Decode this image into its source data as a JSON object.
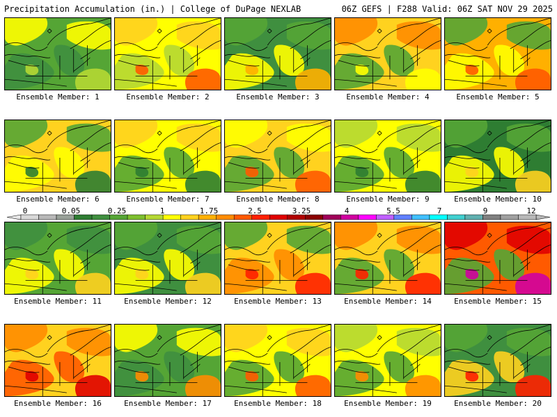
{
  "header": {
    "title": "Precipitation Accumulation (in.) | College of DuPage NEXLAB",
    "run_info": "06Z GEFS | F288 Valid: 06Z SAT NOV 29 2025"
  },
  "legend": {
    "tick_labels": [
      "0",
      "0.05",
      "0.25",
      "1",
      "1.75",
      "2.5",
      "3.25",
      "4",
      "5.5",
      "7",
      "9",
      "12"
    ],
    "colors": [
      "#d8d8d8",
      "#b8b8b8",
      "#98a098",
      "#2e7d32",
      "#3f8f3f",
      "#55a535",
      "#7dbf2e",
      "#b5d833",
      "#ffff00",
      "#ffd21f",
      "#ffb000",
      "#ff8c00",
      "#ff5a00",
      "#ff2000",
      "#e00000",
      "#b00000",
      "#8b0000",
      "#a0005a",
      "#d000a0",
      "#ff00ff",
      "#c060ff",
      "#6080ff",
      "#40c0ff",
      "#00ffff",
      "#40d0d0",
      "#60b0b0",
      "#808080",
      "#a0a0a0",
      "#b8b8b8"
    ]
  },
  "members": [
    {
      "label": "Ensemble Member: 1",
      "colors": [
        "#55a535",
        "#ffff00",
        "#3f8f3f",
        "#b5d833"
      ]
    },
    {
      "label": "Ensemble Member: 2",
      "colors": [
        "#ffff00",
        "#ffd21f",
        "#b5d833",
        "#ff5a00"
      ]
    },
    {
      "label": "Ensemble Member: 3",
      "colors": [
        "#3f8f3f",
        "#55a535",
        "#ffff00",
        "#ffb000"
      ]
    },
    {
      "label": "Ensemble Member: 4",
      "colors": [
        "#ffd21f",
        "#ff8c00",
        "#55a535",
        "#ffff00"
      ]
    },
    {
      "label": "Ensemble Member: 5",
      "colors": [
        "#ffb000",
        "#55a535",
        "#ffff00",
        "#ff5a00"
      ]
    },
    {
      "label": "Ensemble Member: 6",
      "colors": [
        "#ffd21f",
        "#55a535",
        "#ffff00",
        "#2e7d32"
      ]
    },
    {
      "label": "Ensemble Member: 7",
      "colors": [
        "#ffff00",
        "#ffd21f",
        "#55a535",
        "#2e7d32"
      ]
    },
    {
      "label": "Ensemble Member: 8",
      "colors": [
        "#ffd21f",
        "#ffff00",
        "#55a535",
        "#ff5a00"
      ]
    },
    {
      "label": "Ensemble Member: 9",
      "colors": [
        "#ffff00",
        "#b5d833",
        "#55a535",
        "#2e7d32"
      ]
    },
    {
      "label": "Ensemble Member: 10",
      "colors": [
        "#2e7d32",
        "#55a535",
        "#ffff00",
        "#ffd21f"
      ]
    },
    {
      "label": "Ensemble Member: 11",
      "colors": [
        "#55a535",
        "#3f8f3f",
        "#ffff00",
        "#ffd21f"
      ]
    },
    {
      "label": "Ensemble Member: 12",
      "colors": [
        "#3f8f3f",
        "#55a535",
        "#ffff00",
        "#ffd21f"
      ]
    },
    {
      "label": "Ensemble Member: 13",
      "colors": [
        "#ffd21f",
        "#55a535",
        "#ff8c00",
        "#ff2000"
      ]
    },
    {
      "label": "Ensemble Member: 14",
      "colors": [
        "#ffd21f",
        "#ff8c00",
        "#55a535",
        "#ff2000"
      ]
    },
    {
      "label": "Ensemble Member: 15",
      "colors": [
        "#ff5a00",
        "#e00000",
        "#55a535",
        "#d000a0"
      ]
    },
    {
      "label": "Ensemble Member: 16",
      "colors": [
        "#ffd21f",
        "#ff8c00",
        "#ff5a00",
        "#e00000"
      ]
    },
    {
      "label": "Ensemble Member: 17",
      "colors": [
        "#55a535",
        "#ffff00",
        "#3f8f3f",
        "#ff8c00"
      ]
    },
    {
      "label": "Ensemble Member: 18",
      "colors": [
        "#ffff00",
        "#ffd21f",
        "#55a535",
        "#ff5a00"
      ]
    },
    {
      "label": "Ensemble Member: 19",
      "colors": [
        "#ffff00",
        "#b5d833",
        "#55a535",
        "#ff8c00"
      ]
    },
    {
      "label": "Ensemble Member: 20",
      "colors": [
        "#3f8f3f",
        "#55a535",
        "#ffd21f",
        "#ff2000"
      ]
    }
  ]
}
